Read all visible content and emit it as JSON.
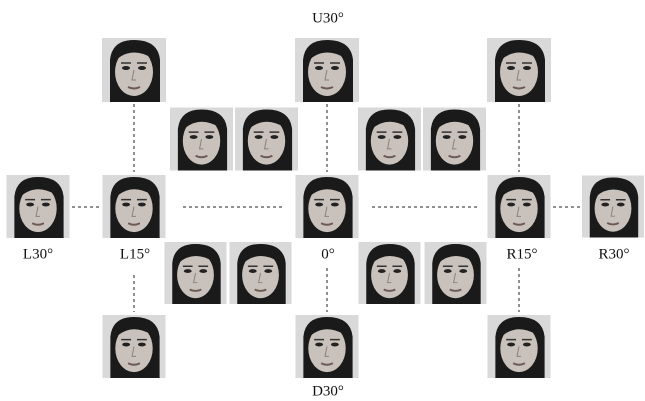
{
  "labels": {
    "up": "U30°",
    "left30": "L30°",
    "left15": "L15°",
    "center": "0°",
    "right15": "R15°",
    "right30": "R30°",
    "down": "D30°"
  }
}
